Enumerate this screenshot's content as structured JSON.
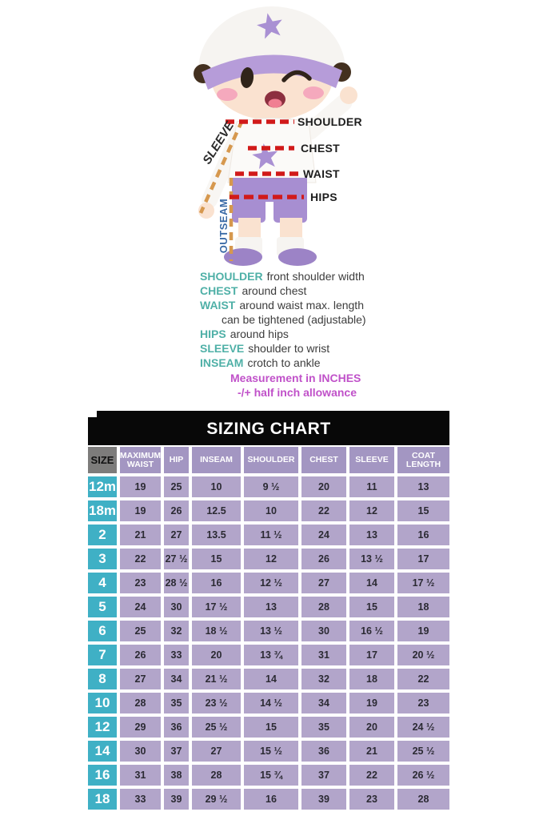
{
  "figure": {
    "sleeve_label": "SLEEVE",
    "outseam_label": "OUTSEAM",
    "shoulder_label": "SHOULDER",
    "chest_label": "CHEST",
    "waist_label": "WAIST",
    "hips_label": "HIPS"
  },
  "legend": {
    "items": [
      {
        "term": "SHOULDER",
        "text": "front shoulder width",
        "indent": false
      },
      {
        "term": "CHEST",
        "text": "around chest",
        "indent": false
      },
      {
        "term": "WAIST",
        "text": "around waist max. length",
        "indent": false
      },
      {
        "term": "",
        "text": "can be tightened (adjustable)",
        "indent": true
      },
      {
        "term": "HIPS",
        "text": "around hips",
        "indent": false
      },
      {
        "term": "SLEEVE",
        "text": "shoulder to wrist",
        "indent": false
      },
      {
        "term": "INSEAM",
        "text": "crotch to ankle",
        "indent": false
      }
    ],
    "notes": [
      "Measurement in INCHES",
      "-/+ half inch allowance"
    ]
  },
  "sizing_chart": {
    "title": "SIZING CHART",
    "columns": [
      "SIZE",
      "MAXIMUM WAIST",
      "HIP",
      "INSEAM",
      "SHOULDER",
      "CHEST",
      "SLEEVE",
      "COAT LENGTH"
    ],
    "rows": [
      {
        "size": "12m",
        "values": [
          "19",
          "25",
          "10",
          "9 ½",
          "20",
          "11",
          "13"
        ]
      },
      {
        "size": "18m",
        "values": [
          "19",
          "26",
          "12.5",
          "10",
          "22",
          "12",
          "15"
        ]
      },
      {
        "size": "2",
        "values": [
          "21",
          "27",
          "13.5",
          "11 ½",
          "24",
          "13",
          "16"
        ]
      },
      {
        "size": "3",
        "values": [
          "22",
          "27 ½",
          "15",
          "12",
          "26",
          "13 ½",
          "17"
        ]
      },
      {
        "size": "4",
        "values": [
          "23",
          "28 ½",
          "16",
          "12 ½",
          "27",
          "14",
          "17 ½"
        ]
      },
      {
        "size": "5",
        "values": [
          "24",
          "30",
          "17 ½",
          "13",
          "28",
          "15",
          "18"
        ]
      },
      {
        "size": "6",
        "values": [
          "25",
          "32",
          "18 ½",
          "13 ½",
          "30",
          "16 ½",
          "19"
        ]
      },
      {
        "size": "7",
        "values": [
          "26",
          "33",
          "20",
          "13 ¾",
          "31",
          "17",
          "20 ½"
        ]
      },
      {
        "size": "8",
        "values": [
          "27",
          "34",
          "21 ½",
          "14",
          "32",
          "18",
          "22"
        ]
      },
      {
        "size": "10",
        "values": [
          "28",
          "35",
          "23 ½",
          "14 ½",
          "34",
          "19",
          "23"
        ]
      },
      {
        "size": "12",
        "values": [
          "29",
          "36",
          "25 ½",
          "15",
          "35",
          "20",
          "24 ½"
        ]
      },
      {
        "size": "14",
        "values": [
          "30",
          "37",
          "27",
          "15 ½",
          "36",
          "21",
          "25 ½"
        ]
      },
      {
        "size": "16",
        "values": [
          "31",
          "38",
          "28",
          "15 ¾",
          "37",
          "22",
          "26 ½"
        ]
      },
      {
        "size": "18",
        "values": [
          "33",
          "39",
          "29 ½",
          "16",
          "39",
          "23",
          "28"
        ]
      }
    ]
  },
  "chart_data": {
    "type": "table",
    "title": "SIZING CHART",
    "columns": [
      "SIZE",
      "MAXIMUM WAIST",
      "HIP",
      "INSEAM",
      "SHOULDER",
      "CHEST",
      "SLEEVE",
      "COAT LENGTH"
    ],
    "rows": [
      [
        "12m",
        "19",
        "25",
        "10",
        "9 ½",
        "20",
        "11",
        "13"
      ],
      [
        "18m",
        "19",
        "26",
        "12.5",
        "10",
        "22",
        "12",
        "15"
      ],
      [
        "2",
        "21",
        "27",
        "13.5",
        "11 ½",
        "24",
        "13",
        "16"
      ],
      [
        "3",
        "22",
        "27 ½",
        "15",
        "12",
        "26",
        "13 ½",
        "17"
      ],
      [
        "4",
        "23",
        "28 ½",
        "16",
        "12 ½",
        "27",
        "14",
        "17 ½"
      ],
      [
        "5",
        "24",
        "30",
        "17 ½",
        "13",
        "28",
        "15",
        "18"
      ],
      [
        "6",
        "25",
        "32",
        "18 ½",
        "13 ½",
        "30",
        "16 ½",
        "19"
      ],
      [
        "7",
        "26",
        "33",
        "20",
        "13 ¾",
        "31",
        "17",
        "20 ½"
      ],
      [
        "8",
        "27",
        "34",
        "21 ½",
        "14",
        "32",
        "18",
        "22"
      ],
      [
        "10",
        "28",
        "35",
        "23 ½",
        "14 ½",
        "34",
        "19",
        "23"
      ],
      [
        "12",
        "29",
        "36",
        "25 ½",
        "15",
        "35",
        "20",
        "24 ½"
      ],
      [
        "14",
        "30",
        "37",
        "27",
        "15 ½",
        "36",
        "21",
        "25 ½"
      ],
      [
        "16",
        "31",
        "38",
        "28",
        "15 ¾",
        "37",
        "22",
        "26 ½"
      ],
      [
        "18",
        "33",
        "39",
        "29 ½",
        "16",
        "39",
        "23",
        "28"
      ]
    ],
    "units_note": "Measurement in INCHES, -/+ half inch allowance"
  },
  "colors": {
    "title_bar": "#080808",
    "header_purple": "#a396c2",
    "cell_purple": "#b2a5ca",
    "size_cyan": "#3fb0c5",
    "size_header_gray": "#7d7c7b",
    "dash_red": "#d11a1a",
    "dash_tan": "#d6984e",
    "term_teal": "#4fb0a7",
    "note_magenta": "#c051c9",
    "outseam_blue": "#3a6aa6"
  }
}
